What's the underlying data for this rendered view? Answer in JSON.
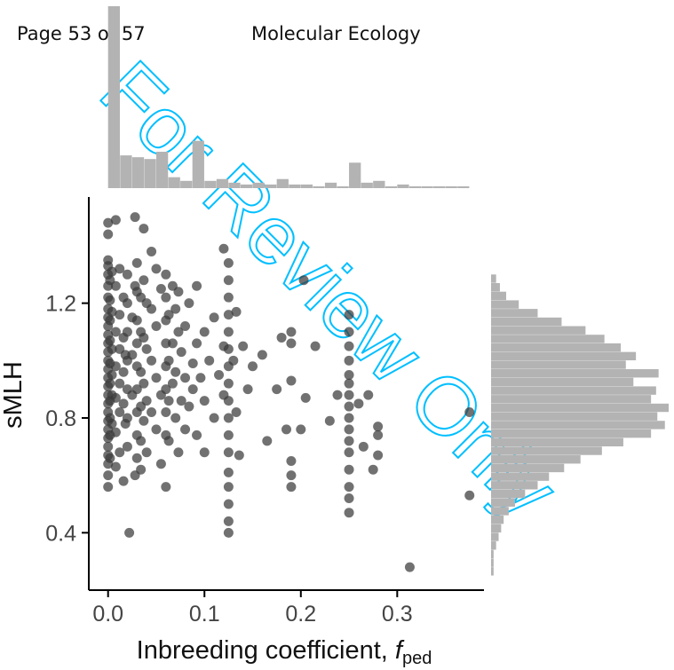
{
  "header": {
    "left": "Page 53 of 57",
    "center": "Molecular Ecology"
  },
  "watermark": {
    "text": "For Review Only",
    "color": "#00bfff"
  },
  "chart_data": {
    "type": "scatter",
    "title": "",
    "xlabel": "Inbreeding coefficient, ",
    "xlabel_italic": "f",
    "xlabel_sub": "ped",
    "ylabel": "sMLH",
    "xlim": [
      -0.02,
      0.39
    ],
    "ylim": [
      0.2,
      1.57
    ],
    "xticks": [
      0.0,
      0.1,
      0.2,
      0.3
    ],
    "xtick_labels": [
      "0.0",
      "0.1",
      "0.2",
      "0.3"
    ],
    "yticks": [
      0.4,
      0.8,
      1.2
    ],
    "ytick_labels": [
      "0.4",
      "0.8",
      "1.2"
    ],
    "point_color": "#3a3a3a",
    "hist_color": "#b3b3b3",
    "marginal_x_hist": {
      "bin_start": 0.0,
      "bin_width": 0.0125,
      "counts": [
        100,
        18,
        17,
        16,
        20,
        6,
        4,
        26,
        4,
        5,
        3,
        2,
        3,
        2,
        5,
        2,
        2,
        1,
        3,
        1,
        14,
        3,
        4,
        1,
        2,
        1,
        1,
        1,
        1,
        1
      ]
    },
    "marginal_y_hist": {
      "bin_start": 0.25,
      "bin_width": 0.03,
      "counts": [
        2,
        2,
        2,
        4,
        6,
        8,
        10,
        14,
        19,
        27,
        37,
        46,
        58,
        71,
        88,
        105,
        127,
        138,
        132,
        141,
        127,
        131,
        113,
        133,
        107,
        115,
        103,
        90,
        75,
        56,
        37,
        22,
        12,
        7,
        4
      ]
    },
    "points": [
      [
        0.0,
        1.48
      ],
      [
        0.0,
        1.44
      ],
      [
        0.0,
        1.35
      ],
      [
        0.0,
        1.33
      ],
      [
        0.0,
        1.3
      ],
      [
        0.0,
        1.26
      ],
      [
        0.0,
        1.22
      ],
      [
        0.0,
        1.18
      ],
      [
        0.0,
        1.15
      ],
      [
        0.0,
        1.12
      ],
      [
        0.0,
        1.09
      ],
      [
        0.0,
        1.06
      ],
      [
        0.0,
        1.03
      ],
      [
        0.0,
        1.0
      ],
      [
        0.0,
        0.97
      ],
      [
        0.0,
        0.94
      ],
      [
        0.0,
        0.91
      ],
      [
        0.0,
        0.88
      ],
      [
        0.0,
        0.85
      ],
      [
        0.0,
        0.82
      ],
      [
        0.0,
        0.79
      ],
      [
        0.0,
        0.76
      ],
      [
        0.0,
        0.73
      ],
      [
        0.0,
        0.7
      ],
      [
        0.0,
        0.67
      ],
      [
        0.0,
        0.64
      ],
      [
        0.0,
        0.6
      ],
      [
        0.0,
        0.56
      ],
      [
        0.002,
        1.28
      ],
      [
        0.002,
        1.21
      ],
      [
        0.002,
        1.14
      ],
      [
        0.002,
        1.07
      ],
      [
        0.002,
        0.99
      ],
      [
        0.002,
        0.92
      ],
      [
        0.002,
        0.86
      ],
      [
        0.002,
        0.8
      ],
      [
        0.002,
        0.74
      ],
      [
        0.002,
        0.66
      ],
      [
        0.004,
        1.31
      ],
      [
        0.004,
        1.17
      ],
      [
        0.004,
        1.04
      ],
      [
        0.004,
        0.95
      ],
      [
        0.004,
        0.88
      ],
      [
        0.004,
        0.78
      ],
      [
        0.008,
        1.49
      ],
      [
        0.008,
        1.26
      ],
      [
        0.008,
        1.1
      ],
      [
        0.008,
        0.98
      ],
      [
        0.008,
        0.87
      ],
      [
        0.008,
        0.75
      ],
      [
        0.008,
        0.63
      ],
      [
        0.012,
        1.32
      ],
      [
        0.012,
        1.16
      ],
      [
        0.012,
        1.04
      ],
      [
        0.012,
        0.92
      ],
      [
        0.012,
        0.82
      ],
      [
        0.012,
        0.68
      ],
      [
        0.016,
        1.22
      ],
      [
        0.016,
        1.08
      ],
      [
        0.016,
        0.96
      ],
      [
        0.016,
        0.85
      ],
      [
        0.016,
        0.58
      ],
      [
        0.018,
        1.02
      ],
      [
        0.018,
        0.78
      ],
      [
        0.02,
        1.3
      ],
      [
        0.02,
        1.2
      ],
      [
        0.02,
        1.1
      ],
      [
        0.02,
        1.0
      ],
      [
        0.02,
        0.9
      ],
      [
        0.02,
        0.8
      ],
      [
        0.02,
        0.7
      ],
      [
        0.022,
        0.4
      ],
      [
        0.025,
        1.15
      ],
      [
        0.025,
        1.02
      ],
      [
        0.025,
        0.88
      ],
      [
        0.028,
        1.5
      ],
      [
        0.028,
        1.26
      ],
      [
        0.028,
        0.6
      ],
      [
        0.03,
        1.34
      ],
      [
        0.03,
        1.24
      ],
      [
        0.03,
        1.14
      ],
      [
        0.03,
        1.06
      ],
      [
        0.03,
        0.98
      ],
      [
        0.03,
        0.9
      ],
      [
        0.03,
        0.82
      ],
      [
        0.03,
        0.74
      ],
      [
        0.03,
        0.66
      ],
      [
        0.034,
        1.22
      ],
      [
        0.034,
        1.1
      ],
      [
        0.034,
        0.96
      ],
      [
        0.034,
        0.84
      ],
      [
        0.034,
        0.72
      ],
      [
        0.034,
        0.62
      ],
      [
        0.037,
        1.46
      ],
      [
        0.037,
        1.28
      ],
      [
        0.037,
        1.08
      ],
      [
        0.037,
        0.92
      ],
      [
        0.037,
        0.79
      ],
      [
        0.04,
        1.2
      ],
      [
        0.04,
        1.04
      ],
      [
        0.04,
        0.86
      ],
      [
        0.04,
        0.68
      ],
      [
        0.045,
        1.38
      ],
      [
        0.045,
        1.18
      ],
      [
        0.045,
        1.0
      ],
      [
        0.045,
        0.82
      ],
      [
        0.05,
        1.32
      ],
      [
        0.05,
        1.12
      ],
      [
        0.05,
        0.94
      ],
      [
        0.05,
        0.76
      ],
      [
        0.055,
        1.25
      ],
      [
        0.055,
        0.88
      ],
      [
        0.055,
        0.64
      ],
      [
        0.06,
        1.3
      ],
      [
        0.06,
        1.22
      ],
      [
        0.06,
        1.14
      ],
      [
        0.06,
        1.06
      ],
      [
        0.06,
        0.98
      ],
      [
        0.06,
        0.9
      ],
      [
        0.06,
        0.82
      ],
      [
        0.06,
        0.74
      ],
      [
        0.06,
        0.56
      ],
      [
        0.063,
        1.16
      ],
      [
        0.063,
        1.0
      ],
      [
        0.063,
        0.86
      ],
      [
        0.063,
        0.72
      ],
      [
        0.067,
        1.26
      ],
      [
        0.067,
        1.06
      ],
      [
        0.067,
        0.92
      ],
      [
        0.07,
        1.18
      ],
      [
        0.07,
        0.96
      ],
      [
        0.07,
        0.8
      ],
      [
        0.073,
        1.24
      ],
      [
        0.073,
        1.1
      ],
      [
        0.073,
        0.68
      ],
      [
        0.076,
        1.03
      ],
      [
        0.076,
        0.86
      ],
      [
        0.08,
        1.12
      ],
      [
        0.08,
        0.94
      ],
      [
        0.08,
        0.76
      ],
      [
        0.084,
        1.2
      ],
      [
        0.084,
        0.84
      ],
      [
        0.088,
        0.99
      ],
      [
        0.088,
        0.9
      ],
      [
        0.092,
        1.26
      ],
      [
        0.092,
        1.06
      ],
      [
        0.092,
        0.74
      ],
      [
        0.096,
        0.94
      ],
      [
        0.1,
        1.1
      ],
      [
        0.1,
        0.86
      ],
      [
        0.1,
        0.68
      ],
      [
        0.105,
        1.0
      ],
      [
        0.11,
        1.15
      ],
      [
        0.11,
        0.8
      ],
      [
        0.115,
        0.95
      ],
      [
        0.12,
        1.39
      ],
      [
        0.12,
        1.05
      ],
      [
        0.12,
        0.88
      ],
      [
        0.125,
        1.34
      ],
      [
        0.125,
        1.28
      ],
      [
        0.125,
        1.22
      ],
      [
        0.125,
        1.16
      ],
      [
        0.125,
        1.1
      ],
      [
        0.125,
        1.04
      ],
      [
        0.125,
        0.98
      ],
      [
        0.125,
        0.92
      ],
      [
        0.125,
        0.86
      ],
      [
        0.125,
        0.8
      ],
      [
        0.125,
        0.74
      ],
      [
        0.125,
        0.68
      ],
      [
        0.125,
        0.61
      ],
      [
        0.125,
        0.56
      ],
      [
        0.125,
        0.5
      ],
      [
        0.125,
        0.44
      ],
      [
        0.125,
        0.4
      ],
      [
        0.13,
        1.0
      ],
      [
        0.133,
        1.17
      ],
      [
        0.133,
        0.82
      ],
      [
        0.136,
        0.67
      ],
      [
        0.14,
        1.05
      ],
      [
        0.145,
        0.9
      ],
      [
        0.15,
        0.98
      ],
      [
        0.16,
        1.02
      ],
      [
        0.165,
        0.72
      ],
      [
        0.175,
        0.9
      ],
      [
        0.18,
        1.08
      ],
      [
        0.185,
        0.76
      ],
      [
        0.19,
        1.1
      ],
      [
        0.19,
        0.65
      ],
      [
        0.19,
        0.6
      ],
      [
        0.19,
        0.56
      ],
      [
        0.19,
        0.93
      ],
      [
        0.19,
        1.06
      ],
      [
        0.2,
        0.76
      ],
      [
        0.203,
        1.28
      ],
      [
        0.205,
        0.87
      ],
      [
        0.215,
        1.05
      ],
      [
        0.23,
        0.79
      ],
      [
        0.238,
        0.88
      ],
      [
        0.25,
        1.16
      ],
      [
        0.25,
        1.1
      ],
      [
        0.25,
        1.05
      ],
      [
        0.25,
        1.0
      ],
      [
        0.25,
        0.95
      ],
      [
        0.25,
        0.92
      ],
      [
        0.25,
        0.88
      ],
      [
        0.25,
        0.84
      ],
      [
        0.25,
        0.8
      ],
      [
        0.25,
        0.76
      ],
      [
        0.25,
        0.72
      ],
      [
        0.25,
        0.68
      ],
      [
        0.25,
        0.62
      ],
      [
        0.25,
        0.56
      ],
      [
        0.25,
        0.52
      ],
      [
        0.25,
        0.47
      ],
      [
        0.26,
        0.85
      ],
      [
        0.265,
        0.7
      ],
      [
        0.27,
        0.88
      ],
      [
        0.275,
        0.62
      ],
      [
        0.28,
        0.67
      ],
      [
        0.28,
        0.74
      ],
      [
        0.28,
        0.77
      ],
      [
        0.313,
        0.28
      ],
      [
        0.375,
        0.82
      ],
      [
        0.375,
        0.53
      ]
    ]
  }
}
